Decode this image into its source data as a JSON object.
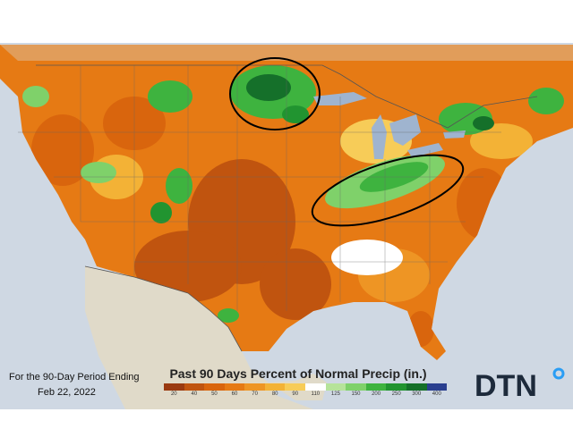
{
  "map": {
    "title": "Past 90 Days Percent of Normal Precip (in.)",
    "period_label": "For the 90-Day Period Ending",
    "period_date": "Feb 22, 2022",
    "brand": "DTN",
    "legend": {
      "ticks": [
        "20",
        "40",
        "50",
        "60",
        "70",
        "80",
        "90",
        "110",
        "125",
        "150",
        "200",
        "250",
        "300",
        "400"
      ],
      "colors": [
        "#9a3a10",
        "#c0540f",
        "#d9650d",
        "#e67a14",
        "#ee9524",
        "#f3b236",
        "#f7cc58",
        "#ffffff",
        "#b6e39a",
        "#7fd16a",
        "#3eb33f",
        "#219430",
        "#15702a",
        "#2a3f8f"
      ]
    },
    "annotations": [
      "upper-midwest-wet-area-circle",
      "ohio-valley-wet-area-ellipse"
    ],
    "palette": {
      "ocean": "#cfd8e3",
      "lake": "#9fb4cf",
      "canada": "#d9d3c3",
      "mexico": "#e0dac9",
      "dry": "#e67a14",
      "very_dry": "#c0540f",
      "wet": "#3eb33f",
      "very_wet": "#15702a",
      "border": "#555555"
    }
  }
}
